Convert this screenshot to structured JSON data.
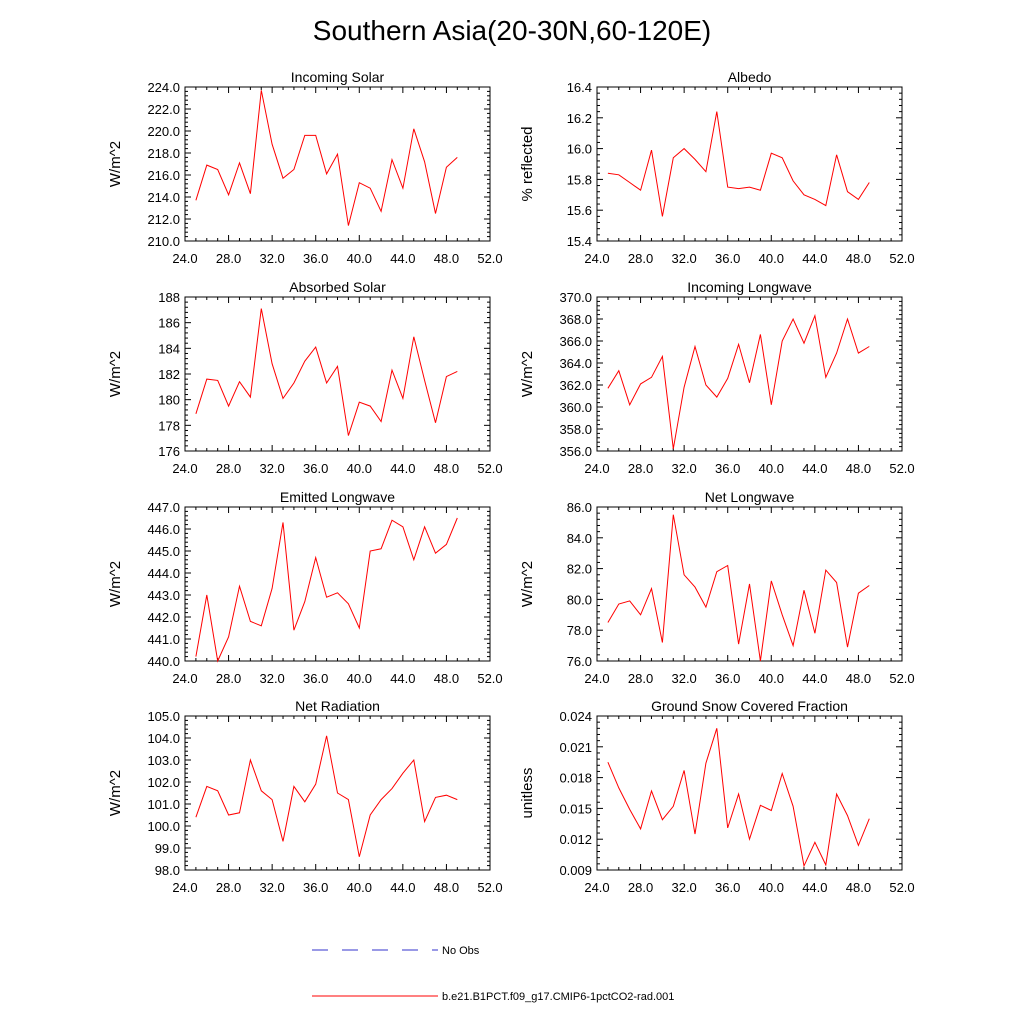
{
  "figure": {
    "title": "Southern Asia(20-30N,60-120E)"
  },
  "legend": {
    "items": [
      {
        "label": "No Obs",
        "color": "#3333cc",
        "style": "dashed"
      },
      {
        "label": "b.e21.B1PCT.f09_g17.CMIP6-1pctCO2-rad.001",
        "color": "#ff0000",
        "style": "solid"
      }
    ]
  },
  "chart_data": [
    {
      "type": "line",
      "title": "Incoming Solar",
      "xlabel": "",
      "ylabel": "W/m^2",
      "xlim": [
        24,
        52
      ],
      "ylim": [
        210,
        224
      ],
      "xticks": [
        "24.0",
        "28.0",
        "32.0",
        "36.0",
        "40.0",
        "44.0",
        "48.0",
        "52.0"
      ],
      "yticks": [
        "210.0",
        "212.0",
        "214.0",
        "216.0",
        "218.0",
        "220.0",
        "222.0",
        "224.0"
      ],
      "color": "#ff0000",
      "x": [
        25,
        26,
        27,
        28,
        29,
        30,
        31,
        32,
        33,
        34,
        35,
        36,
        37,
        38,
        39,
        40,
        41,
        42,
        43,
        44,
        45,
        46,
        47,
        48,
        49
      ],
      "y": [
        213.7,
        216.9,
        216.5,
        214.2,
        217.1,
        214.3,
        223.7,
        218.8,
        215.7,
        216.5,
        219.6,
        219.6,
        216.1,
        217.9,
        211.4,
        215.3,
        214.8,
        212.7,
        217.4,
        214.8,
        220.2,
        217.2,
        212.5,
        216.7,
        217.6
      ]
    },
    {
      "type": "line",
      "title": "Albedo",
      "xlabel": "",
      "ylabel": "% reflected",
      "xlim": [
        24,
        52
      ],
      "ylim": [
        15.4,
        16.4
      ],
      "xticks": [
        "24.0",
        "28.0",
        "32.0",
        "36.0",
        "40.0",
        "44.0",
        "48.0",
        "52.0"
      ],
      "yticks": [
        "15.4",
        "15.6",
        "15.8",
        "16.0",
        "16.2",
        "16.4"
      ],
      "color": "#ff0000",
      "x": [
        25,
        26,
        27,
        28,
        29,
        30,
        31,
        32,
        33,
        34,
        35,
        36,
        37,
        38,
        39,
        40,
        41,
        42,
        43,
        44,
        45,
        46,
        47,
        48,
        49
      ],
      "y": [
        15.84,
        15.83,
        15.78,
        15.73,
        15.99,
        15.56,
        15.94,
        16.0,
        15.93,
        15.85,
        16.24,
        15.75,
        15.74,
        15.75,
        15.73,
        15.97,
        15.94,
        15.79,
        15.7,
        15.67,
        15.63,
        15.96,
        15.72,
        15.67,
        15.78
      ]
    },
    {
      "type": "line",
      "title": "Absorbed Solar",
      "xlabel": "",
      "ylabel": "W/m^2",
      "xlim": [
        24,
        52
      ],
      "ylim": [
        176,
        188
      ],
      "xticks": [
        "24.0",
        "28.0",
        "32.0",
        "36.0",
        "40.0",
        "44.0",
        "48.0",
        "52.0"
      ],
      "yticks": [
        "176",
        "178",
        "180",
        "182",
        "184",
        "186",
        "188"
      ],
      "color": "#ff0000",
      "x": [
        25,
        26,
        27,
        28,
        29,
        30,
        31,
        32,
        33,
        34,
        35,
        36,
        37,
        38,
        39,
        40,
        41,
        42,
        43,
        44,
        45,
        46,
        47,
        48,
        49
      ],
      "y": [
        178.9,
        181.6,
        181.5,
        179.5,
        181.4,
        180.2,
        187.1,
        182.8,
        180.1,
        181.3,
        183.0,
        184.1,
        181.3,
        182.6,
        177.2,
        179.8,
        179.5,
        178.3,
        182.3,
        180.1,
        184.9,
        181.5,
        178.2,
        181.8,
        182.2
      ]
    },
    {
      "type": "line",
      "title": "Incoming Longwave",
      "xlabel": "",
      "ylabel": "W/m^2",
      "xlim": [
        24,
        52
      ],
      "ylim": [
        356,
        370
      ],
      "xticks": [
        "24.0",
        "28.0",
        "32.0",
        "36.0",
        "40.0",
        "44.0",
        "48.0",
        "52.0"
      ],
      "yticks": [
        "356.0",
        "358.0",
        "360.0",
        "362.0",
        "364.0",
        "366.0",
        "368.0",
        "370.0"
      ],
      "color": "#ff0000",
      "x": [
        25,
        26,
        27,
        28,
        29,
        30,
        31,
        32,
        33,
        34,
        35,
        36,
        37,
        38,
        39,
        40,
        41,
        42,
        43,
        44,
        45,
        46,
        47,
        48,
        49
      ],
      "y": [
        361.7,
        363.3,
        360.2,
        362.1,
        362.7,
        364.6,
        356.2,
        361.8,
        365.5,
        362.0,
        360.9,
        362.6,
        365.7,
        362.2,
        366.6,
        360.2,
        366.0,
        368.0,
        365.8,
        368.3,
        362.7,
        364.9,
        368.0,
        364.9,
        365.5
      ]
    },
    {
      "type": "line",
      "title": "Emitted Longwave",
      "xlabel": "",
      "ylabel": "W/m^2",
      "xlim": [
        24,
        52
      ],
      "ylim": [
        440,
        447
      ],
      "xticks": [
        "24.0",
        "28.0",
        "32.0",
        "36.0",
        "40.0",
        "44.0",
        "48.0",
        "52.0"
      ],
      "yticks": [
        "440.0",
        "441.0",
        "442.0",
        "443.0",
        "444.0",
        "445.0",
        "446.0",
        "447.0"
      ],
      "color": "#ff0000",
      "x": [
        25,
        26,
        27,
        28,
        29,
        30,
        31,
        32,
        33,
        34,
        35,
        36,
        37,
        38,
        39,
        40,
        41,
        42,
        43,
        44,
        45,
        46,
        47,
        48,
        49
      ],
      "y": [
        440.2,
        443.0,
        440.0,
        441.1,
        443.4,
        441.8,
        441.6,
        443.3,
        446.3,
        441.4,
        442.7,
        444.7,
        442.9,
        443.1,
        442.6,
        441.5,
        445.0,
        445.1,
        446.4,
        446.1,
        444.6,
        446.1,
        444.9,
        445.3,
        446.5
      ]
    },
    {
      "type": "line",
      "title": "Net Longwave",
      "xlabel": "",
      "ylabel": "W/m^2",
      "xlim": [
        24,
        52
      ],
      "ylim": [
        76,
        86
      ],
      "xticks": [
        "24.0",
        "28.0",
        "32.0",
        "36.0",
        "40.0",
        "44.0",
        "48.0",
        "52.0"
      ],
      "yticks": [
        "76.0",
        "78.0",
        "80.0",
        "82.0",
        "84.0",
        "86.0"
      ],
      "color": "#ff0000",
      "x": [
        25,
        26,
        27,
        28,
        29,
        30,
        31,
        32,
        33,
        34,
        35,
        36,
        37,
        38,
        39,
        40,
        41,
        42,
        43,
        44,
        45,
        46,
        47,
        48,
        49
      ],
      "y": [
        78.5,
        79.7,
        79.9,
        79.0,
        80.7,
        77.2,
        85.5,
        81.6,
        80.8,
        79.5,
        81.8,
        82.2,
        77.1,
        81.0,
        76.0,
        81.2,
        79.0,
        77.0,
        80.6,
        77.8,
        81.9,
        81.1,
        76.9,
        80.4,
        80.9
      ]
    },
    {
      "type": "line",
      "title": "Net Radiation",
      "xlabel": "",
      "ylabel": "W/m^2",
      "xlim": [
        24,
        52
      ],
      "ylim": [
        98,
        105
      ],
      "xticks": [
        "24.0",
        "28.0",
        "32.0",
        "36.0",
        "40.0",
        "44.0",
        "48.0",
        "52.0"
      ],
      "yticks": [
        "98.0",
        "99.0",
        "100.0",
        "101.0",
        "102.0",
        "103.0",
        "104.0",
        "105.0"
      ],
      "color": "#ff0000",
      "x": [
        25,
        26,
        27,
        28,
        29,
        30,
        31,
        32,
        33,
        34,
        35,
        36,
        37,
        38,
        39,
        40,
        41,
        42,
        43,
        44,
        45,
        46,
        47,
        48,
        49
      ],
      "y": [
        100.4,
        101.8,
        101.6,
        100.5,
        100.6,
        103.0,
        101.6,
        101.2,
        99.3,
        101.8,
        101.1,
        101.9,
        104.1,
        101.5,
        101.2,
        98.6,
        100.5,
        101.2,
        101.7,
        102.4,
        103.0,
        100.2,
        101.3,
        101.4,
        101.2
      ]
    },
    {
      "type": "line",
      "title": "Ground Snow Covered Fraction",
      "xlabel": "",
      "ylabel": "unitless",
      "xlim": [
        24,
        52
      ],
      "ylim": [
        0.009,
        0.024
      ],
      "xticks": [
        "24.0",
        "28.0",
        "32.0",
        "36.0",
        "40.0",
        "44.0",
        "48.0",
        "52.0"
      ],
      "yticks": [
        "0.009",
        "0.012",
        "0.015",
        "0.018",
        "0.021",
        "0.024"
      ],
      "color": "#ff0000",
      "x": [
        25,
        26,
        27,
        28,
        29,
        30,
        31,
        32,
        33,
        34,
        35,
        36,
        37,
        38,
        39,
        40,
        41,
        42,
        43,
        44,
        45,
        46,
        47,
        48,
        49
      ],
      "y": [
        0.0195,
        0.017,
        0.0149,
        0.013,
        0.0167,
        0.0139,
        0.0152,
        0.0187,
        0.0125,
        0.0194,
        0.0228,
        0.0131,
        0.0164,
        0.012,
        0.0153,
        0.0148,
        0.0184,
        0.0152,
        0.0094,
        0.0117,
        0.0095,
        0.0164,
        0.0143,
        0.0114,
        0.014
      ]
    }
  ]
}
